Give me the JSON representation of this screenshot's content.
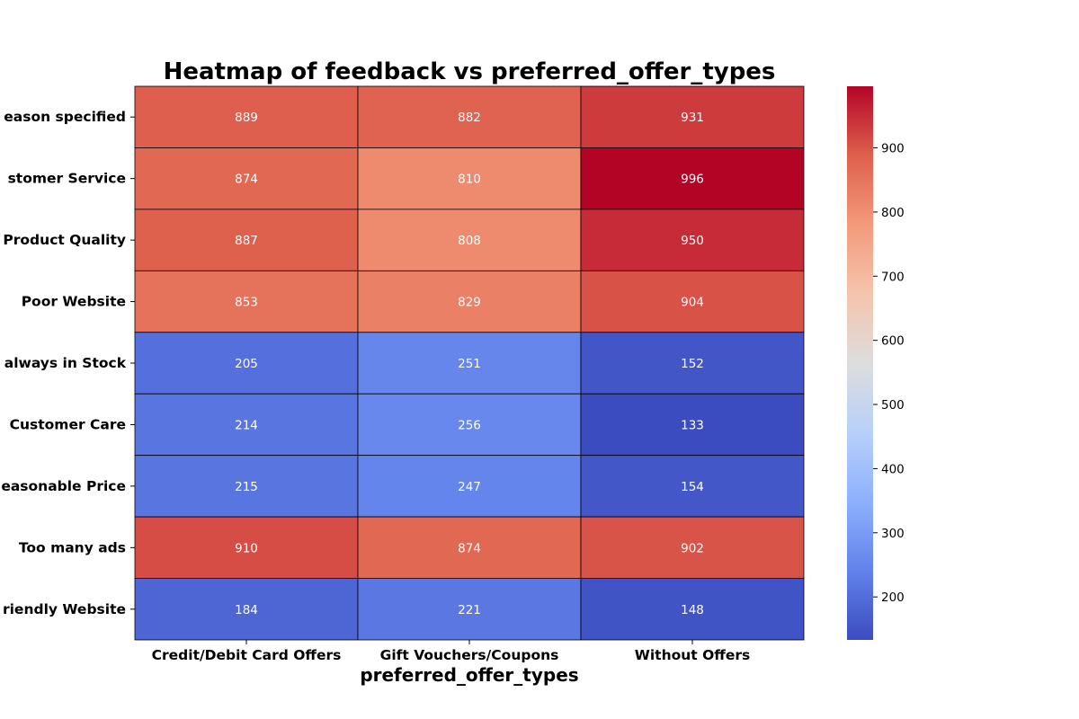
{
  "chart_data": {
    "type": "heatmap",
    "title": "Heatmap of feedback vs preferred_offer_types",
    "xlabel": "preferred_offer_types",
    "ylabel": "",
    "columns": [
      "Credit/Debit Card Offers",
      "Gift Vouchers/Coupons",
      "Without Offers"
    ],
    "rows": [
      "No reason specified",
      "Poor Customer Service",
      "Poor Product Quality",
      "Poor Website",
      "Products always in Stock",
      "Quality Customer Care",
      "Reasonable Price",
      "Too many ads",
      "User Friendly Website"
    ],
    "row_labels_visible": [
      "eason specified",
      "stomer Service",
      "Product Quality",
      "Poor Website",
      "always in Stock",
      "Customer Care",
      "easonable Price",
      "Too many ads",
      "riendly Website"
    ],
    "values": [
      [
        889,
        882,
        931
      ],
      [
        874,
        810,
        996
      ],
      [
        887,
        808,
        950
      ],
      [
        853,
        829,
        904
      ],
      [
        205,
        251,
        152
      ],
      [
        214,
        256,
        133
      ],
      [
        215,
        247,
        154
      ],
      [
        910,
        874,
        902
      ],
      [
        184,
        221,
        148
      ]
    ],
    "colormap": "coolwarm",
    "vmin": 133,
    "vmax": 996,
    "colorbar_ticks": [
      200,
      300,
      400,
      500,
      600,
      700,
      800,
      900
    ],
    "grid_line_color": "#000000"
  }
}
